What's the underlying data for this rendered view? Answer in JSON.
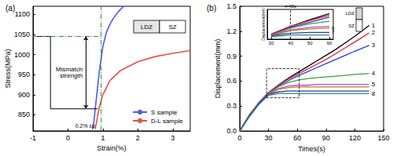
{
  "chart_data": [
    {
      "type": "line",
      "title": "(a)",
      "x_label": "Strain(%)",
      "y_label": "Stress(MPa)",
      "xlim": [
        -1,
        3.5
      ],
      "xticks": [
        -1,
        0,
        1,
        2,
        3
      ],
      "ylim": [
        810,
        1120
      ],
      "yticks": [
        850,
        900,
        950,
        1000,
        1050,
        1100
      ],
      "grid": false,
      "legend": "lower right",
      "series": [
        {
          "name": "S sample",
          "color": "#4b5be6",
          "x": [
            0.72,
            0.8,
            0.9,
            1.0,
            1.1,
            1.2,
            1.3,
            1.4,
            1.5,
            1.6
          ],
          "values": [
            815,
            880,
            960,
            1020,
            1055,
            1075,
            1090,
            1102,
            1112,
            1120
          ]
        },
        {
          "name": "D-L sample",
          "color": "#e8504a",
          "x": [
            0.78,
            0.9,
            1.0,
            1.2,
            1.5,
            2.0,
            2.5,
            3.0,
            3.5
          ],
          "values": [
            815,
            870,
            900,
            935,
            960,
            982,
            995,
            1003,
            1010
          ]
        },
        {
          "color": "#000000",
          "line_style": "solid",
          "x": [
            -1,
            -0.5,
            -0.5,
            0.85
          ],
          "values": [
            1045,
            1045,
            865,
            865
          ]
        },
        {
          "color": "#2e8b2e",
          "line_style": "dashdot",
          "x": [
            -1,
            0.95
          ],
          "values": [
            1045,
            1045
          ]
        },
        {
          "color": "#2e8b2e",
          "line_style": "dashdot",
          "x": [
            0.95,
            0.95
          ],
          "values": [
            810,
            1120
          ]
        }
      ],
      "annotations": {
        "mismatch": {
          "label": "Mismatch strength",
          "values": [
            865,
            1045
          ]
        },
        "offset": "0.2% εp"
      },
      "specimen": [
        "LDZ",
        "SZ"
      ]
    },
    {
      "type": "line",
      "title": "(b)",
      "x_label": "Times(s)",
      "y_label": "Displacement(mm)",
      "xlim": [
        0,
        150
      ],
      "xticks": [
        0,
        30,
        60,
        90,
        120,
        150
      ],
      "ylim": [
        0,
        1.5
      ],
      "yticks": [
        {
          "value": 0,
          "label": "0.0"
        },
        0.3,
        0.6,
        0.9,
        1.2,
        1.5
      ],
      "grid": false,
      "x": [
        0,
        10,
        20,
        30,
        40,
        50,
        60,
        70,
        80,
        90,
        100,
        110,
        120,
        135
      ],
      "series": [
        {
          "name": "1",
          "color": "#000000",
          "values": [
            0,
            0.19,
            0.34,
            0.46,
            0.55,
            0.63,
            0.7,
            0.77,
            0.84,
            0.91,
            0.98,
            1.06,
            1.14,
            1.27
          ]
        },
        {
          "name": "2",
          "color": "#e8202a",
          "values": [
            0,
            0.19,
            0.34,
            0.46,
            0.55,
            0.62,
            0.68,
            0.74,
            0.8,
            0.86,
            0.93,
            1.0,
            1.07,
            1.18
          ]
        },
        {
          "name": "3",
          "color": "#2040e0",
          "values": [
            0,
            0.18,
            0.34,
            0.45,
            0.54,
            0.6,
            0.66,
            0.71,
            0.76,
            0.81,
            0.86,
            0.91,
            0.96,
            1.03
          ]
        },
        {
          "name": "4",
          "color": "#3aa040",
          "values": [
            0,
            0.18,
            0.33,
            0.45,
            0.53,
            0.58,
            0.61,
            0.63,
            0.64,
            0.65,
            0.66,
            0.67,
            0.68,
            0.69
          ]
        },
        {
          "name": "5",
          "color": "#d040d0",
          "values": [
            0,
            0.18,
            0.33,
            0.45,
            0.51,
            0.54,
            0.55,
            0.55,
            0.56,
            0.56,
            0.56,
            0.56,
            0.56,
            0.56
          ]
        },
        {
          "color": "#a08a20",
          "values": [
            0,
            0.18,
            0.33,
            0.44,
            0.5,
            0.52,
            0.53,
            0.53,
            0.53,
            0.53,
            0.53,
            0.53,
            0.53,
            0.53
          ]
        },
        {
          "color": "#3a3a90",
          "values": [
            0,
            0.18,
            0.33,
            0.44,
            0.47,
            0.48,
            0.48,
            0.48,
            0.48,
            0.48,
            0.48,
            0.48,
            0.48,
            0.48
          ]
        },
        {
          "name": "8",
          "color": "#208a8a",
          "values": [
            0,
            0.17,
            0.32,
            0.43,
            0.45,
            0.45,
            0.45,
            0.45,
            0.45,
            0.45,
            0.45,
            0.45,
            0.45,
            0.45
          ]
        }
      ],
      "specimen": [
        "LDZ",
        "SZ"
      ]
    },
    {
      "type": "line",
      "y_label": "Displacement(mm)",
      "xlim": [
        28,
        62
      ],
      "xticks": [
        30,
        40,
        50,
        60
      ],
      "ylim": [
        0.4,
        0.75
      ],
      "tick_labels": "x",
      "grid": false,
      "x": [
        30,
        40,
        50,
        60
      ],
      "series": [
        {
          "color": "#000000",
          "values": [
            0.46,
            0.55,
            0.63,
            0.7
          ]
        },
        {
          "color": "#e8202a",
          "values": [
            0.46,
            0.55,
            0.62,
            0.68
          ]
        },
        {
          "color": "#2040e0",
          "values": [
            0.45,
            0.54,
            0.6,
            0.66
          ]
        },
        {
          "color": "#3aa040",
          "values": [
            0.45,
            0.53,
            0.58,
            0.61
          ]
        },
        {
          "color": "#d040d0",
          "values": [
            0.45,
            0.51,
            0.54,
            0.55
          ]
        },
        {
          "name": "6",
          "color": "#a08a20",
          "values": [
            0.44,
            0.5,
            0.52,
            0.53
          ]
        },
        {
          "name": "7",
          "color": "#3a3a90",
          "values": [
            0.44,
            0.47,
            0.48,
            0.48
          ]
        },
        {
          "color": "#208a8a",
          "values": [
            0.43,
            0.45,
            0.45,
            0.45
          ]
        }
      ],
      "marker_line": {
        "x": 40,
        "label": "t=40s"
      }
    }
  ]
}
